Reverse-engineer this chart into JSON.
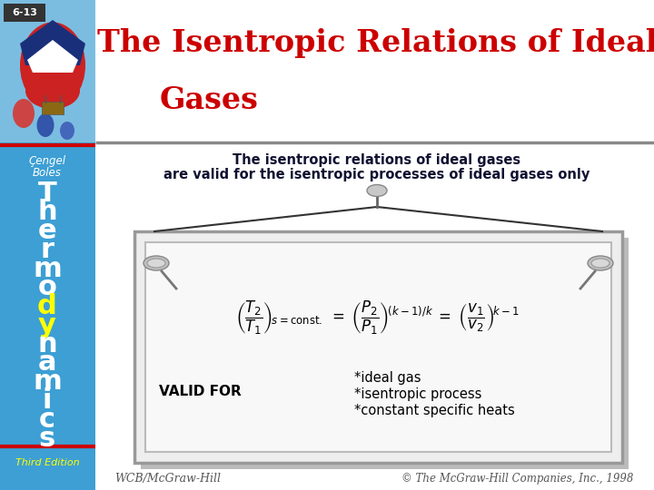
{
  "title_line1": "The Isentropic Relations of Ideal",
  "title_line2": "Gases",
  "slide_number": "6-13",
  "subtitle_line1": "The isentropic relations of ideal gases",
  "subtitle_line2": "are valid for the isentropic processes of ideal gases only",
  "valid_for_label": "VALID FOR",
  "valid_items": [
    "*ideal gas",
    "*isentropic process",
    "*constant specific heats"
  ],
  "author_line1": "Çengel",
  "author_line2": "Boles",
  "book_title_white": "Thermo",
  "book_title_yellow": "dy",
  "book_title_white2": "namics",
  "edition": "Third Edition",
  "footer_left": "WCB/McGraw-Hill",
  "footer_right": "© The McGraw-Hill Companies, Inc., 1998",
  "title_color": "#cc0000",
  "sidebar_color": "#3d9fd4",
  "sidebar_text_color": "#ffffff",
  "thermo_dy_color": "#ffff00",
  "third_edition_color": "#ffff00",
  "slide_num_bg": "#333333",
  "slide_num_color": "#ffffff",
  "board_bg": "#f5f5f5",
  "board_border": "#aaaaaa",
  "footer_color": "#555555",
  "red_line_color": "#cc0000",
  "divider_color": "#888888"
}
